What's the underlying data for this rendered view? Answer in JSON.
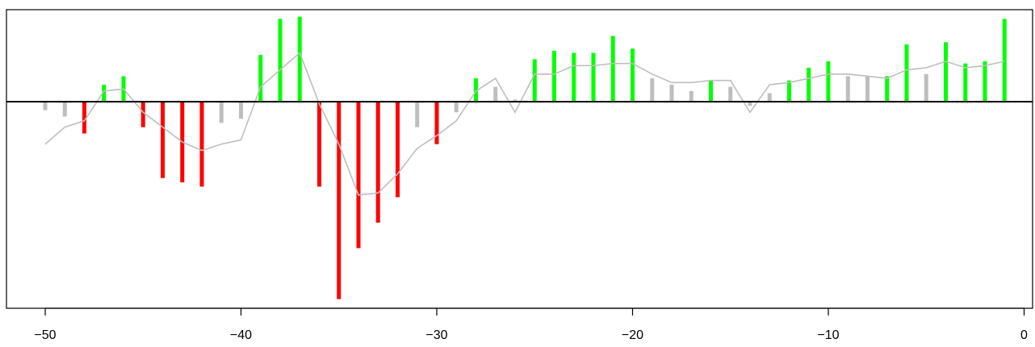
{
  "chart_data": {
    "type": "bar",
    "title": "",
    "subtitle": "",
    "xlabel": "",
    "ylabel": "",
    "xlim": [
      -50.5,
      0.5
    ],
    "ylim": [
      -1.0,
      0.4
    ],
    "x_ticks": [
      -50,
      -40,
      -30,
      -20,
      -10,
      0
    ],
    "x_tick_labels": [
      "−50",
      "−40",
      "−30",
      "−20",
      "−10",
      "0"
    ],
    "baseline": 0,
    "grid": false,
    "legend": "none",
    "colors": {
      "positive": "#00ff00",
      "negative": "#ff0000",
      "neutral": "#bebebe",
      "line": "#bebebe",
      "axis": "#000000"
    },
    "series": [
      {
        "kind": "bars",
        "x": [
          -50,
          -49,
          -48,
          -47,
          -46,
          -45,
          -44,
          -43,
          -42,
          -41,
          -40,
          -39,
          -38,
          -37,
          -36,
          -35,
          -34,
          -33,
          -32,
          -31,
          -30,
          -29,
          -28,
          -27,
          -26,
          -25,
          -24,
          -23,
          -22,
          -21,
          -20,
          -19,
          -18,
          -17,
          -16,
          -15,
          -14,
          -13,
          -12,
          -11,
          -10,
          -9,
          -8,
          -7,
          -6,
          -5,
          -4,
          -3,
          -2,
          -1
        ],
        "values": [
          -0.04,
          -0.07,
          -0.15,
          0.08,
          0.12,
          -0.12,
          -0.36,
          -0.38,
          -0.4,
          -0.1,
          -0.08,
          0.22,
          0.39,
          0.4,
          -0.4,
          -0.93,
          -0.69,
          -0.57,
          -0.45,
          -0.12,
          -0.2,
          -0.05,
          0.11,
          0.07,
          0.01,
          0.2,
          0.24,
          0.23,
          0.23,
          0.31,
          0.25,
          0.11,
          0.08,
          0.05,
          0.1,
          0.07,
          -0.02,
          0.04,
          0.1,
          0.16,
          0.19,
          0.12,
          0.12,
          0.12,
          0.27,
          0.13,
          0.28,
          0.18,
          0.19,
          0.39
        ],
        "status": [
          "neutral",
          "neutral",
          "negative",
          "positive",
          "positive",
          "negative",
          "negative",
          "negative",
          "negative",
          "neutral",
          "neutral",
          "positive",
          "positive",
          "positive",
          "negative",
          "negative",
          "negative",
          "negative",
          "negative",
          "neutral",
          "negative",
          "neutral",
          "positive",
          "neutral",
          "neutral",
          "positive",
          "positive",
          "positive",
          "positive",
          "positive",
          "positive",
          "neutral",
          "neutral",
          "neutral",
          "positive",
          "neutral",
          "neutral",
          "neutral",
          "positive",
          "positive",
          "positive",
          "neutral",
          "neutral",
          "positive",
          "positive",
          "neutral",
          "positive",
          "positive",
          "positive",
          "positive"
        ]
      },
      {
        "kind": "line",
        "x": [
          -50,
          -49,
          -48,
          -47,
          -46,
          -45,
          -44,
          -43,
          -42,
          -41,
          -40,
          -39,
          -38,
          -37,
          -36,
          -35,
          -34,
          -33,
          -32,
          -31,
          -30,
          -29,
          -28,
          -27,
          -26,
          -25,
          -24,
          -23,
          -22,
          -21,
          -20,
          -19,
          -18,
          -17,
          -16,
          -15,
          -14,
          -13,
          -12,
          -11,
          -10,
          -9,
          -8,
          -7,
          -6,
          -5,
          -4,
          -3,
          -2,
          -1
        ],
        "values": [
          -0.2,
          -0.12,
          -0.09,
          0.05,
          0.06,
          -0.05,
          -0.12,
          -0.19,
          -0.23,
          -0.2,
          -0.18,
          0.07,
          0.15,
          0.23,
          -0.01,
          -0.2,
          -0.44,
          -0.43,
          -0.34,
          -0.22,
          -0.16,
          -0.09,
          0.05,
          0.11,
          -0.05,
          0.13,
          0.13,
          0.17,
          0.17,
          0.18,
          0.18,
          0.13,
          0.09,
          0.09,
          0.1,
          0.1,
          -0.05,
          0.08,
          0.09,
          0.11,
          0.13,
          0.13,
          0.12,
          0.11,
          0.15,
          0.16,
          0.19,
          0.16,
          0.17,
          0.19
        ]
      }
    ]
  }
}
